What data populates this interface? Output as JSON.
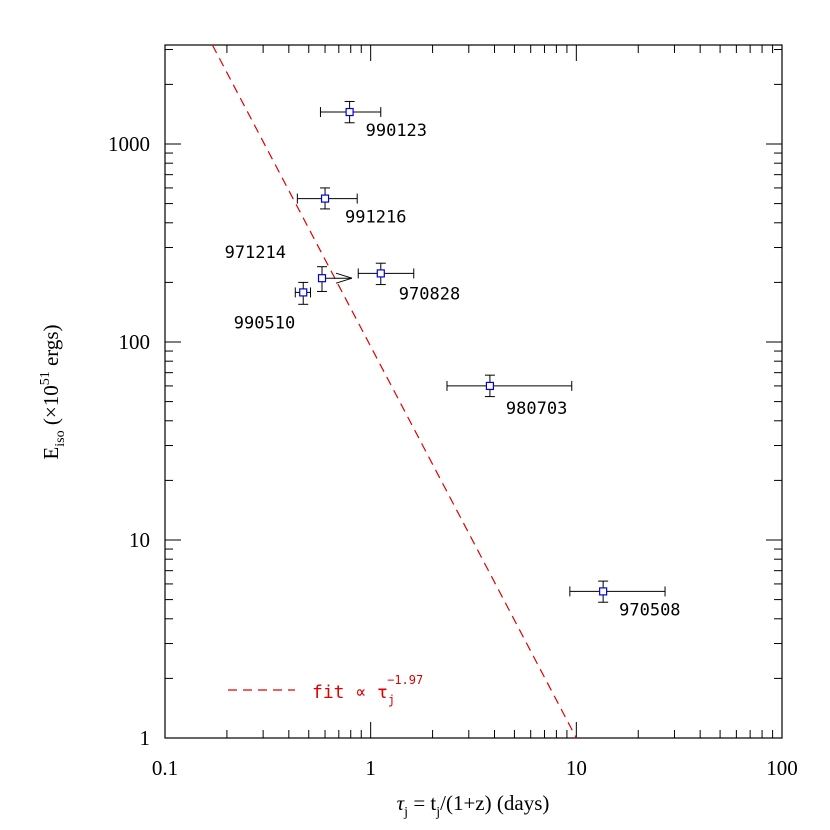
{
  "chart_data": {
    "type": "scatter",
    "xscale": "log",
    "yscale": "log",
    "xlim": [
      0.1,
      100
    ],
    "ylim": [
      1,
      3162
    ],
    "xticks": [
      "0.1",
      "1",
      "10",
      "100"
    ],
    "yticks": [
      "1",
      "10",
      "100",
      "1000"
    ],
    "xlabel": {
      "prefix": "τ",
      "sub": "j",
      "rest": " = t",
      "sub2": "j",
      "rest2": "/(1+z) (days)"
    },
    "ylabel": {
      "prefix": "E",
      "sub": "iso",
      "rest": " (×10",
      "sup": "51",
      "rest2": " ergs)"
    },
    "points": [
      {
        "label": "990123",
        "x": 0.79,
        "y": 1450,
        "xerr": [
          0.57,
          1.12
        ],
        "yerr": [
          1280,
          1640
        ]
      },
      {
        "label": "991216",
        "x": 0.6,
        "y": 530,
        "xerr": [
          0.44,
          0.86
        ],
        "yerr": [
          470,
          600
        ]
      },
      {
        "label": "971214",
        "x": 0.58,
        "y": 210,
        "xerr": [
          0.58,
          0.58
        ],
        "yerr": [
          180,
          240
        ],
        "lower_limit_x": true
      },
      {
        "label": "990510",
        "x": 0.47,
        "y": 178,
        "xerr": [
          0.43,
          0.51
        ],
        "yerr": [
          155,
          200
        ]
      },
      {
        "label": "970828",
        "x": 1.12,
        "y": 222,
        "xerr": [
          0.87,
          1.62
        ],
        "yerr": [
          195,
          250
        ]
      },
      {
        "label": "980703",
        "x": 3.8,
        "y": 60,
        "xerr": [
          2.35,
          9.5
        ],
        "yerr": [
          53,
          68
        ]
      },
      {
        "label": "970508",
        "x": 13.5,
        "y": 5.5,
        "xerr": [
          9.3,
          27.0
        ],
        "yerr": [
          4.85,
          6.2
        ]
      }
    ],
    "fit": {
      "slope": -1.97,
      "x": [
        0.17,
        10.0
      ],
      "y": [
        3162,
        1.0
      ]
    },
    "legend": {
      "text": "fit ∝ τ",
      "sub": "j",
      "sup": "−1.97",
      "placement": "bottom-left"
    },
    "colors": {
      "fit": "#e00000",
      "marker": "#0000e0",
      "axes": "#000000"
    }
  }
}
